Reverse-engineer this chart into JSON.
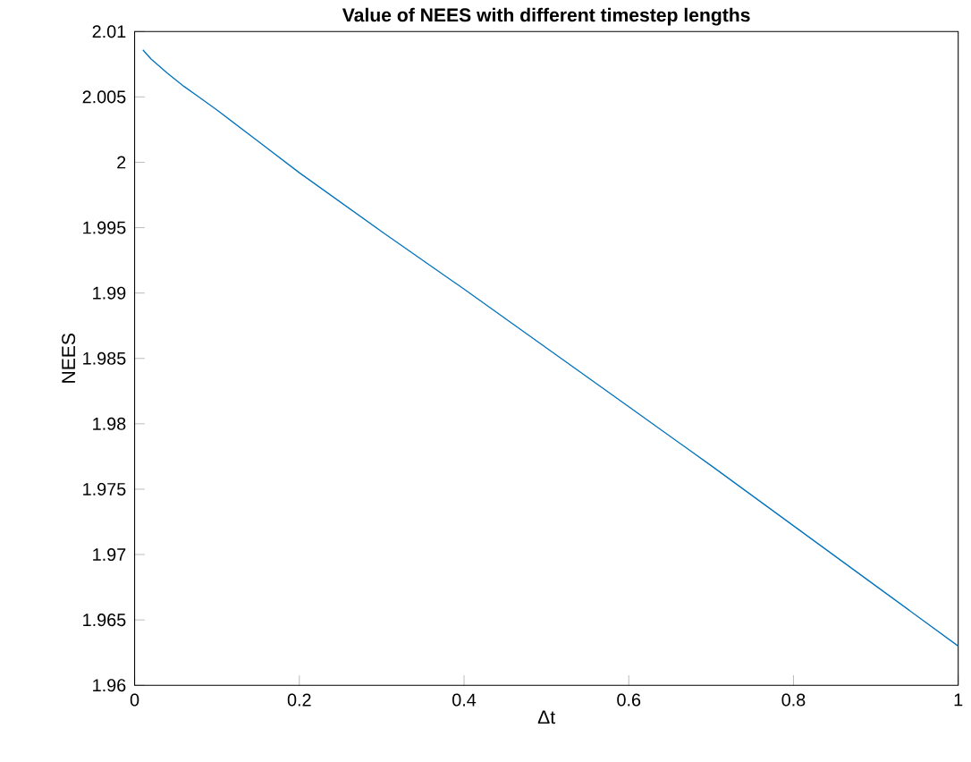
{
  "chart_data": {
    "type": "line",
    "title": "Value of NEES with different timestep lengths",
    "xlabel": "Δt",
    "ylabel": "NEES",
    "x": [
      0.01,
      0.02,
      0.04,
      0.06,
      0.08,
      0.1,
      0.15,
      0.2,
      0.3,
      0.4,
      0.5,
      0.6,
      0.7,
      0.8,
      0.9,
      1.0
    ],
    "series": [
      {
        "color": "#0072bd",
        "values": [
          2.0086,
          2.0079,
          2.0068,
          2.0058,
          2.0049,
          2.004,
          2.0016,
          1.9992,
          1.9947,
          1.9903,
          1.9858,
          1.9813,
          1.9768,
          1.9722,
          1.9676,
          1.963
        ]
      }
    ],
    "xlim": [
      0,
      1
    ],
    "xticks": [
      0,
      0.2,
      0.4,
      0.6,
      0.8,
      1
    ],
    "ylim": [
      1.96,
      2.01
    ],
    "yticks": [
      1.96,
      1.965,
      1.97,
      1.975,
      1.98,
      1.985,
      1.99,
      1.995,
      2,
      2.005,
      2.01
    ],
    "marker": "none",
    "line_style": "solid"
  }
}
